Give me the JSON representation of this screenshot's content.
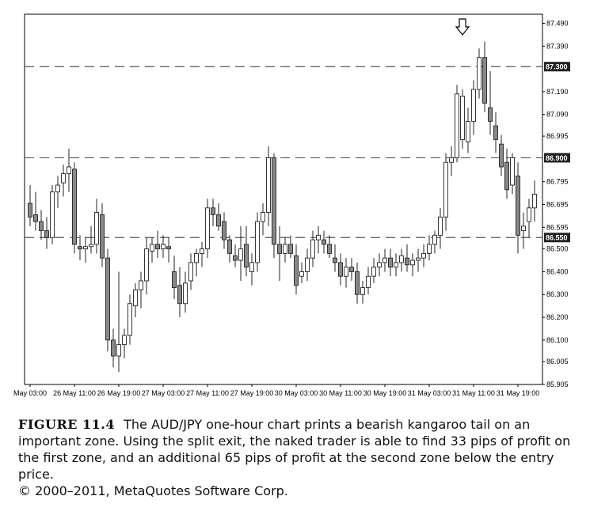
{
  "chart_data": {
    "type": "candlestick",
    "title": "",
    "xlabel": "",
    "ylabel": "",
    "ylim": [
      85.905,
      87.53
    ],
    "y_ticks": [
      87.49,
      87.39,
      87.19,
      87.09,
      86.995,
      86.795,
      86.695,
      86.595,
      86.5,
      86.4,
      86.3,
      86.2,
      86.1,
      86.005,
      85.905
    ],
    "y_tick_labels": [
      "87.490",
      "87.390",
      "87.190",
      "87.090",
      "86.995",
      "86.795",
      "86.695",
      "86.595",
      "86.500",
      "86.400",
      "86.300",
      "86.200",
      "86.100",
      "86.005",
      "85.905"
    ],
    "x_tick_labels": [
      "May 03:00",
      "26 May 11:00",
      "26 May 19:00",
      "27 May 03:00",
      "27 May 11:00",
      "27 May 19:00",
      "30 May 03:00",
      "30 May 11:00",
      "30 May 19:00",
      "31 May 03:00",
      "31 May 11:00",
      "31 May 19:00"
    ],
    "x_tick_bar_index": [
      0,
      8,
      16,
      24,
      32,
      40,
      48,
      56,
      64,
      72,
      80,
      88
    ],
    "grid": false,
    "levels": [
      {
        "value": 87.3,
        "label": "87.300",
        "style": "dashed"
      },
      {
        "value": 86.9,
        "label": "86.900",
        "style": "dashed"
      },
      {
        "value": 86.55,
        "label": "86.550",
        "style": "dashed"
      }
    ],
    "annotation": {
      "type": "arrow-down",
      "bar_index": 78,
      "label": ""
    },
    "series": [
      {
        "ohlc": [
          [
            86.7,
            86.78,
            86.6,
            86.64
          ],
          [
            86.65,
            86.75,
            86.58,
            86.62
          ],
          [
            86.62,
            86.67,
            86.54,
            86.58
          ],
          [
            86.58,
            86.64,
            86.5,
            86.55
          ],
          [
            86.55,
            86.78,
            86.52,
            86.75
          ],
          [
            86.75,
            86.82,
            86.68,
            86.78
          ],
          [
            86.79,
            86.87,
            86.73,
            86.83
          ],
          [
            86.83,
            86.94,
            86.75,
            86.86
          ],
          [
            86.85,
            86.88,
            86.48,
            86.52
          ],
          [
            86.51,
            86.56,
            86.45,
            86.5
          ],
          [
            86.5,
            86.55,
            86.44,
            86.51
          ],
          [
            86.51,
            86.6,
            86.48,
            86.52
          ],
          [
            86.52,
            86.72,
            86.48,
            86.66
          ],
          [
            86.65,
            86.7,
            86.42,
            86.46
          ],
          [
            86.46,
            86.5,
            86.05,
            86.1
          ],
          [
            86.1,
            86.15,
            85.98,
            86.03
          ],
          [
            86.03,
            86.4,
            85.96,
            86.08
          ],
          [
            86.08,
            86.15,
            86.02,
            86.12
          ],
          [
            86.12,
            86.3,
            86.08,
            86.26
          ],
          [
            86.25,
            86.35,
            86.2,
            86.32
          ],
          [
            86.32,
            86.4,
            86.24,
            86.36
          ],
          [
            86.36,
            86.55,
            86.3,
            86.5
          ],
          [
            86.49,
            86.55,
            86.44,
            86.52
          ],
          [
            86.52,
            86.58,
            86.46,
            86.5
          ],
          [
            86.5,
            86.56,
            86.46,
            86.52
          ],
          [
            86.51,
            86.55,
            86.44,
            86.5
          ],
          [
            86.4,
            86.47,
            86.28,
            86.33
          ],
          [
            86.34,
            86.42,
            86.2,
            86.26
          ],
          [
            86.26,
            86.4,
            86.22,
            86.35
          ],
          [
            86.36,
            86.48,
            86.32,
            86.44
          ],
          [
            86.44,
            86.5,
            86.38,
            86.48
          ],
          [
            86.48,
            86.53,
            86.42,
            86.5
          ],
          [
            86.5,
            86.72,
            86.46,
            86.68
          ],
          [
            86.68,
            86.72,
            86.6,
            86.65
          ],
          [
            86.65,
            86.7,
            86.58,
            86.6
          ],
          [
            86.62,
            86.66,
            86.5,
            86.54
          ],
          [
            86.54,
            86.56,
            86.44,
            86.48
          ],
          [
            86.47,
            86.52,
            86.42,
            86.45
          ],
          [
            86.45,
            86.6,
            86.36,
            86.5
          ],
          [
            86.52,
            86.6,
            86.38,
            86.42
          ],
          [
            86.4,
            86.48,
            86.34,
            86.44
          ],
          [
            86.44,
            86.66,
            86.4,
            86.62
          ],
          [
            86.62,
            86.7,
            86.56,
            86.66
          ],
          [
            86.66,
            86.95,
            86.6,
            86.9
          ],
          [
            86.9,
            86.92,
            86.46,
            86.52
          ],
          [
            86.52,
            86.6,
            86.36,
            86.48
          ],
          [
            86.48,
            86.55,
            86.44,
            86.52
          ],
          [
            86.52,
            86.56,
            86.46,
            86.48
          ],
          [
            86.47,
            86.52,
            86.3,
            86.34
          ],
          [
            86.38,
            86.44,
            86.35,
            86.4
          ],
          [
            86.4,
            86.5,
            86.36,
            86.46
          ],
          [
            86.46,
            86.58,
            86.42,
            86.54
          ],
          [
            86.54,
            86.6,
            86.48,
            86.56
          ],
          [
            86.54,
            86.58,
            86.48,
            86.52
          ],
          [
            86.52,
            86.56,
            86.46,
            86.48
          ],
          [
            86.46,
            86.52,
            86.4,
            86.44
          ],
          [
            86.44,
            86.48,
            86.34,
            86.38
          ],
          [
            86.38,
            86.46,
            86.33,
            86.42
          ],
          [
            86.42,
            86.46,
            86.36,
            86.4
          ],
          [
            86.4,
            86.44,
            86.26,
            86.3
          ],
          [
            86.3,
            86.36,
            86.26,
            86.33
          ],
          [
            86.33,
            86.42,
            86.3,
            86.38
          ],
          [
            86.38,
            86.46,
            86.35,
            86.42
          ],
          [
            86.42,
            86.48,
            86.38,
            86.44
          ],
          [
            86.44,
            86.5,
            86.4,
            86.46
          ],
          [
            86.46,
            86.5,
            86.38,
            86.42
          ],
          [
            86.42,
            86.48,
            86.38,
            86.44
          ],
          [
            86.44,
            86.5,
            86.4,
            86.47
          ],
          [
            86.46,
            86.52,
            86.4,
            86.43
          ],
          [
            86.43,
            86.48,
            86.38,
            86.45
          ],
          [
            86.45,
            86.5,
            86.4,
            86.46
          ],
          [
            86.46,
            86.52,
            86.42,
            86.48
          ],
          [
            86.48,
            86.56,
            86.45,
            86.52
          ],
          [
            86.52,
            86.58,
            86.48,
            86.56
          ],
          [
            86.56,
            86.68,
            86.5,
            86.64
          ],
          [
            86.64,
            86.92,
            86.58,
            86.88
          ],
          [
            86.88,
            86.95,
            86.82,
            86.9
          ],
          [
            86.9,
            87.22,
            86.88,
            87.18
          ],
          [
            86.98,
            87.2,
            86.94,
            87.17
          ],
          [
            86.97,
            87.12,
            86.92,
            87.06
          ],
          [
            87.06,
            87.24,
            87.0,
            87.2
          ],
          [
            87.2,
            87.38,
            87.16,
            87.34
          ],
          [
            87.34,
            87.41,
            87.1,
            87.14
          ],
          [
            87.12,
            87.28,
            87.0,
            87.06
          ],
          [
            87.04,
            87.1,
            86.92,
            86.98
          ],
          [
            86.96,
            87.0,
            86.82,
            86.86
          ],
          [
            86.88,
            86.94,
            86.72,
            86.76
          ],
          [
            86.78,
            86.92,
            86.74,
            86.9
          ],
          [
            86.82,
            86.88,
            86.48,
            86.56
          ],
          [
            86.58,
            86.66,
            86.5,
            86.6
          ],
          [
            86.62,
            86.72,
            86.55,
            86.68
          ],
          [
            86.68,
            86.8,
            86.62,
            86.74
          ]
        ]
      }
    ]
  },
  "caption": {
    "figure_label": "FIGURE 11.4",
    "text": "The AUD/JPY one-hour chart prints a bearish kangaroo tail on an important zone. Using the split exit, the naked trader is able to find 33 pips of profit on the first zone, and an additional 65 pips of profit at the second zone below the entry price.",
    "copyright": "© 2000–2011, MetaQuotes Software Corp."
  }
}
